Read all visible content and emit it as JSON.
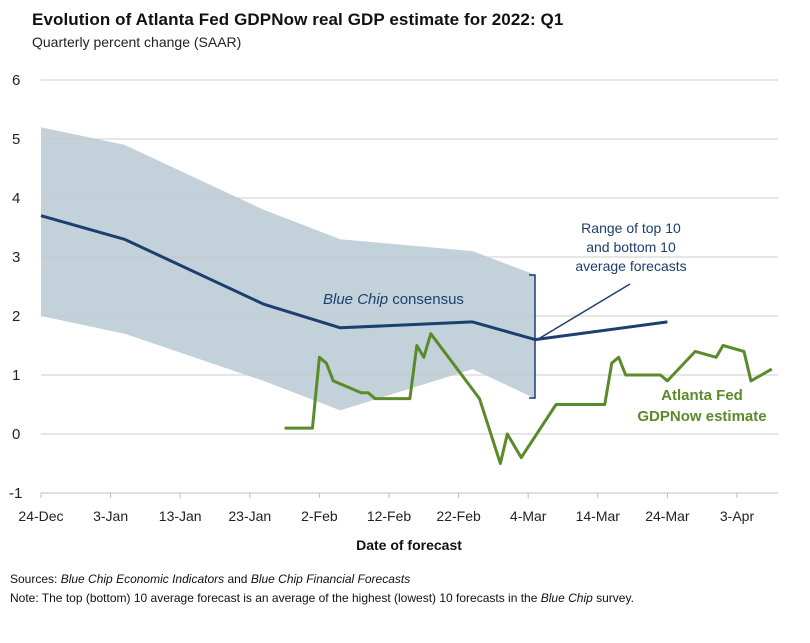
{
  "chart_data": {
    "type": "line",
    "title": "Evolution of Atlanta Fed GDPNow real GDP estimate for 2022: Q1",
    "subtitle": "Quarterly percent change (SAAR)",
    "xlabel": "Date of forecast",
    "ylabel": "",
    "ylim": [
      -1,
      6
    ],
    "yticks": [
      "6",
      "5",
      "4",
      "3",
      "2",
      "1",
      "0",
      "-1"
    ],
    "ytick_values": [
      6,
      5,
      4,
      3,
      2,
      1,
      0,
      -1
    ],
    "x_unit": "days since 24-Dec-2021",
    "xlim": [
      0,
      106
    ],
    "xticks": [
      "24-Dec",
      "3-Jan",
      "13-Jan",
      "23-Jan",
      "2-Feb",
      "12-Feb",
      "22-Feb",
      "4-Mar",
      "14-Mar",
      "24-Mar",
      "3-Apr"
    ],
    "xtick_values": [
      0,
      10,
      20,
      30,
      40,
      50,
      60,
      70,
      80,
      90,
      100
    ],
    "grid": true,
    "series": [
      {
        "name": "Blue Chip consensus",
        "color": "#1c3f6e",
        "x": [
          0,
          12,
          32,
          43,
          62,
          71,
          90
        ],
        "values": [
          3.7,
          3.3,
          2.2,
          1.8,
          1.9,
          1.6,
          1.9
        ]
      },
      {
        "name": "Range of top 10 and bottom 10 average forecasts",
        "type": "band",
        "color": "#c3d1da",
        "x": [
          0,
          12,
          32,
          43,
          62,
          71
        ],
        "upper": [
          5.2,
          4.9,
          3.8,
          3.3,
          3.1,
          2.7
        ],
        "lower": [
          2.0,
          1.7,
          0.9,
          0.4,
          1.1,
          0.6
        ]
      },
      {
        "name": "Atlanta Fed GDPNow estimate",
        "color": "#5a8a2a",
        "x": [
          35,
          39,
          40,
          41,
          42,
          46,
          47,
          48,
          53,
          54,
          55,
          56,
          63,
          66,
          67,
          69,
          74,
          81,
          82,
          83,
          84,
          89,
          90,
          94,
          97,
          98,
          101,
          102,
          105
        ],
        "values": [
          0.1,
          0.1,
          1.3,
          1.2,
          0.9,
          0.7,
          0.7,
          0.6,
          0.6,
          1.5,
          1.3,
          1.7,
          0.6,
          -0.5,
          0.0,
          -0.4,
          0.5,
          0.5,
          1.2,
          1.3,
          1.0,
          1.0,
          0.9,
          1.4,
          1.3,
          1.5,
          1.4,
          0.9,
          1.1
        ]
      }
    ],
    "annotations": {
      "consensus_label_italic": "Blue Chip",
      "consensus_label_rest": " consensus",
      "range_label": [
        "Range of top 10",
        "and bottom 10",
        "average forecasts"
      ],
      "gdpnow_label": [
        "Atlanta Fed",
        "GDPNow estimate"
      ]
    }
  },
  "footer": {
    "sources_label": "Sources:",
    "sources_italic_1": "Blue Chip Economic Indicators",
    "sources_and": " and ",
    "sources_italic_2": "Blue Chip Financial Forecasts",
    "note_label": "Note:",
    "note_text": " The top (bottom) 10 average forecast is an average of the highest (lowest) 10 forecasts in the ",
    "note_italic": "Blue Chip",
    "note_end": " survey."
  }
}
